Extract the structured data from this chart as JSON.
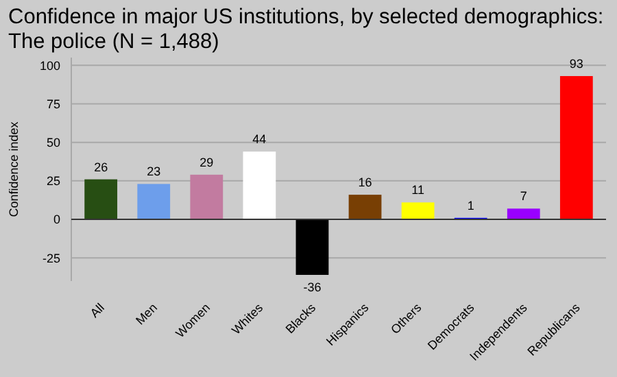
{
  "chart_data": {
    "type": "bar",
    "title": "Confidence in major US institutions, by selected demographics:\nThe police (N = 1,488)",
    "ylabel": "Confidence index",
    "categories": [
      "All",
      "Men",
      "Women",
      "Whites",
      "Blacks",
      "Hispanics",
      "Others",
      "Democrats",
      "Independents",
      "Republicans"
    ],
    "values": [
      26,
      23,
      29,
      44,
      -36,
      16,
      11,
      1,
      7,
      93
    ],
    "colors": [
      "#274e13",
      "#6d9eeb",
      "#c27ba0",
      "#ffffff",
      "#000000",
      "#783f04",
      "#ffff00",
      "#0000ff",
      "#9900ff",
      "#ff0000"
    ],
    "ylim": [
      -40,
      105
    ],
    "yticks": [
      -25,
      0,
      25,
      50,
      75,
      100
    ],
    "grid": "y",
    "data_labels": true
  }
}
